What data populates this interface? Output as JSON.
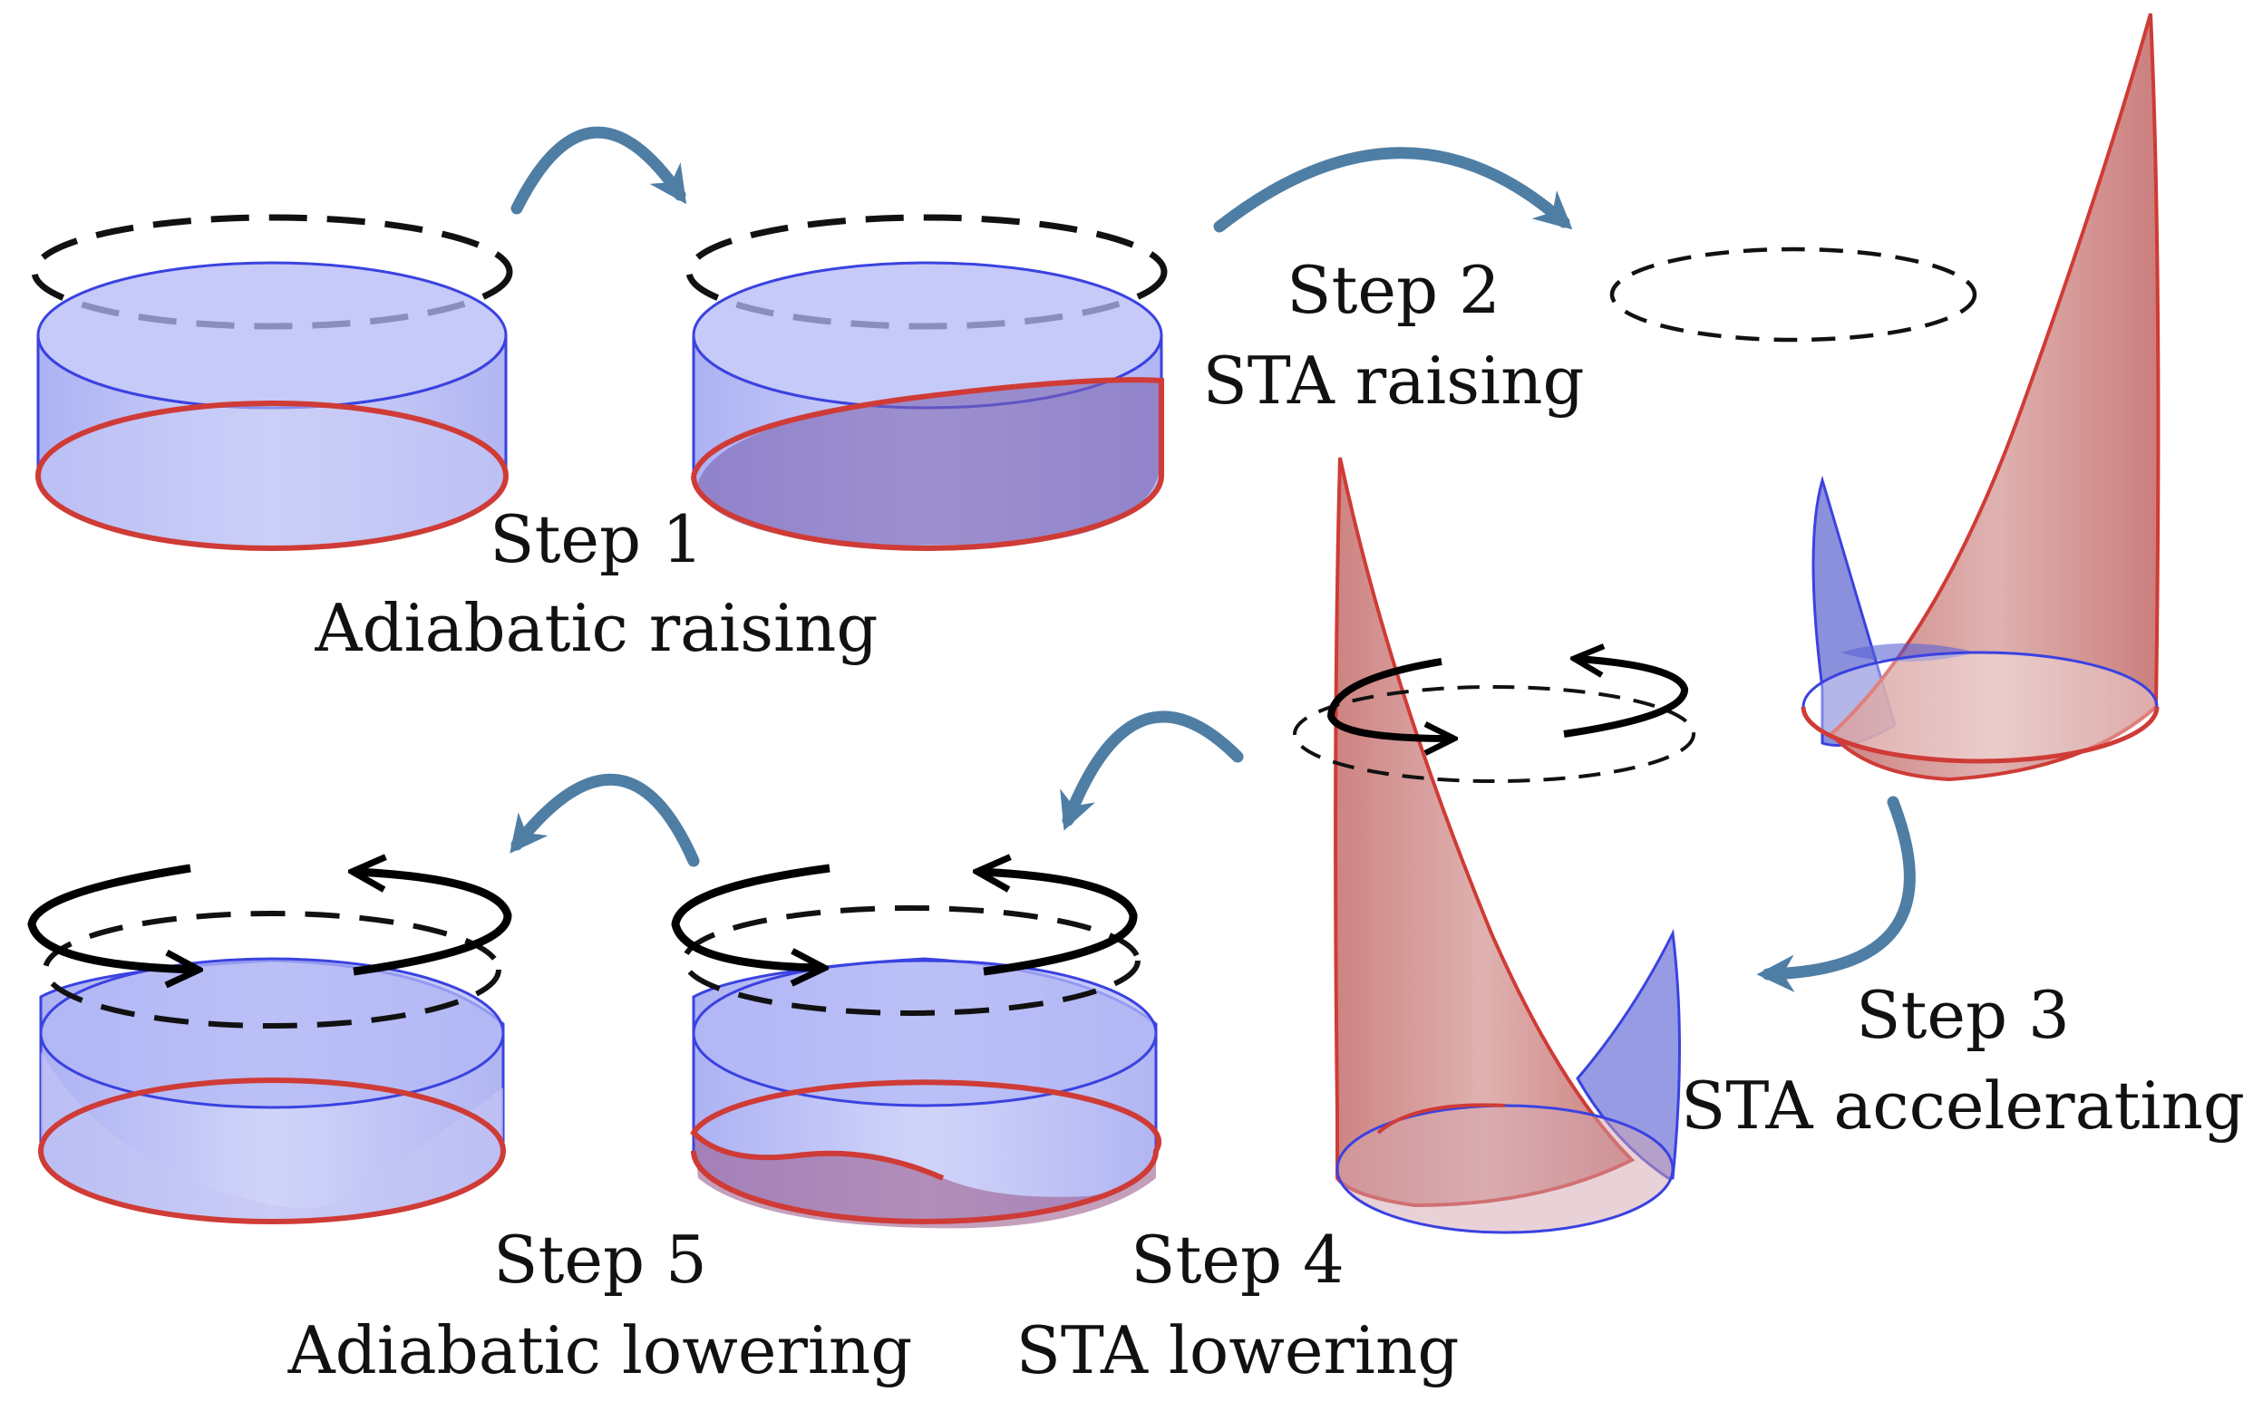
{
  "steps": [
    {
      "title": "Step 1",
      "subtitle": "Adiabatic raising"
    },
    {
      "title": "Step 2",
      "subtitle": "STA raising"
    },
    {
      "title": "Step 3",
      "subtitle": "STA accelerating"
    },
    {
      "title": "Step 4",
      "subtitle": "STA lowering"
    },
    {
      "title": "Step 5",
      "subtitle": "Adiabatic lowering"
    }
  ],
  "colors": {
    "arrow": "#4f7ea5",
    "blue_edge": "#3a42e0",
    "blue_fill": "#b9bef7",
    "red_edge": "#cf3b36",
    "red_fill": "#c98b89",
    "dashed": "#111111",
    "rotation_arrow": "#000000"
  },
  "icons": [
    "step-arrow-icon",
    "rotation-arrow-icon",
    "dashed-ring-icon"
  ]
}
